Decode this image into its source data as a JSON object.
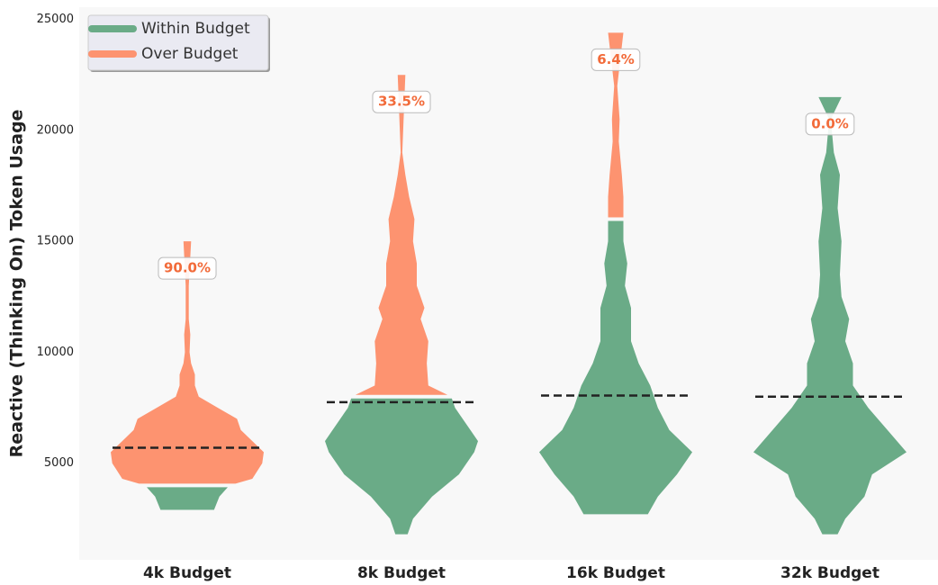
{
  "chart_data": {
    "type": "violin",
    "ylabel": "Reactive (Thinking On) Token Usage",
    "ylim": [
      650,
      25550
    ],
    "yticks": [
      5000,
      10000,
      15000,
      20000,
      25000
    ],
    "categories": [
      "4k Budget",
      "8k Budget",
      "16k Budget",
      "32k Budget"
    ],
    "budgets": [
      4000,
      8000,
      16000,
      32000
    ],
    "means": [
      5700,
      7750,
      8050,
      8000
    ],
    "over_budget_pct": [
      90.0,
      33.5,
      6.4,
      0.0
    ],
    "over_budget_pct_labels": [
      "90.0%",
      "33.5%",
      "6.4%",
      "0.0%"
    ],
    "series": [
      {
        "name": "Within Budget",
        "color": "#6aab87"
      },
      {
        "name": "Over Budget",
        "color": "#fd9370"
      }
    ],
    "legend": "upper left",
    "violins": [
      {
        "y": [
          2900,
          3500,
          4000,
          4300,
          5000,
          5500,
          6000,
          6500,
          7000,
          7500,
          8000,
          8500,
          9000,
          9500,
          10000,
          10800,
          11500,
          13000,
          15000
        ],
        "density": [
          0.35,
          0.42,
          0.55,
          0.85,
          0.98,
          1.0,
          0.85,
          0.7,
          0.65,
          0.4,
          0.15,
          0.1,
          0.1,
          0.05,
          0.03,
          0.04,
          0.02,
          0.02,
          0.05
        ]
      },
      {
        "y": [
          1800,
          2500,
          3500,
          4500,
          5500,
          6000,
          6500,
          7500,
          8000,
          8500,
          9500,
          10500,
          11500,
          12000,
          13000,
          14000,
          15000,
          16000,
          17000,
          18000,
          19000,
          22500
        ],
        "density": [
          0.08,
          0.15,
          0.4,
          0.75,
          0.95,
          1.0,
          0.9,
          0.7,
          0.65,
          0.35,
          0.33,
          0.35,
          0.25,
          0.3,
          0.2,
          0.2,
          0.15,
          0.17,
          0.1,
          0.05,
          0.01,
          0.05
        ]
      },
      {
        "y": [
          2700,
          3500,
          4500,
          5500,
          6500,
          7500,
          8500,
          9500,
          10500,
          12000,
          13000,
          14000,
          15000,
          16400,
          17000,
          18000,
          19500,
          20500,
          22000,
          24400
        ],
        "density": [
          0.42,
          0.55,
          0.8,
          1.0,
          0.7,
          0.55,
          0.45,
          0.3,
          0.2,
          0.2,
          0.12,
          0.15,
          0.1,
          0.1,
          0.1,
          0.08,
          0.04,
          0.05,
          0.02,
          0.1
        ]
      },
      {
        "y": [
          1800,
          2500,
          3500,
          4500,
          5500,
          6500,
          7500,
          8500,
          9500,
          10500,
          11500,
          12500,
          13500,
          15000,
          16500,
          18000,
          19000,
          20500,
          21500
        ],
        "density": [
          0.1,
          0.2,
          0.45,
          0.55,
          1.0,
          0.75,
          0.5,
          0.3,
          0.3,
          0.2,
          0.25,
          0.15,
          0.13,
          0.15,
          0.1,
          0.13,
          0.05,
          0.01,
          0.15
        ]
      }
    ]
  }
}
